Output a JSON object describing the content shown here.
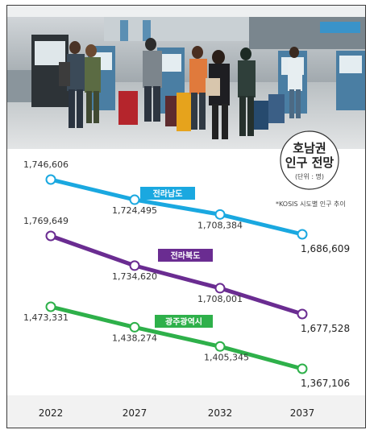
{
  "chart_data": {
    "type": "line",
    "title": "호남권\n인구 전망",
    "title_line1": "호남권",
    "title_line2": "인구 전망",
    "unit": "(단위 : 명)",
    "source": "*KOSIS 시도별 인구 추이",
    "x": [
      "2022",
      "2027",
      "2032",
      "2037"
    ],
    "series": [
      {
        "name": "전라남도",
        "color": "#1aa8e0",
        "values": [
          1746606,
          1724495,
          1708384,
          1686609
        ],
        "labels": [
          "1,746,606",
          "1,724,495",
          "1,708,384",
          "1,686,609"
        ]
      },
      {
        "name": "전라북도",
        "color": "#6a2c91",
        "values": [
          1769649,
          1734620,
          1708001,
          1677528
        ],
        "labels": [
          "1,769,649",
          "1,734,620",
          "1,708,001",
          "1,677,528"
        ]
      },
      {
        "name": "광주광역시",
        "color": "#2eb04a",
        "values": [
          1473331,
          1438274,
          1405345,
          1367106
        ],
        "labels": [
          "1,473,331",
          "1,438,274",
          "1,405,345",
          "1,367,106"
        ]
      }
    ],
    "grid": false,
    "legend": "inline-tags"
  }
}
